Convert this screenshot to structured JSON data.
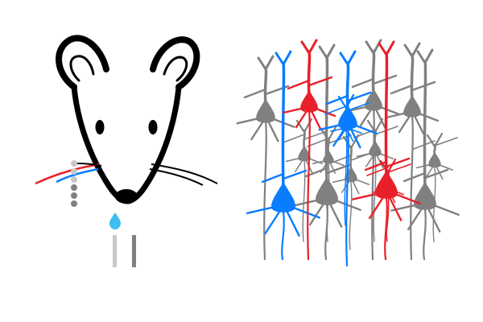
{
  "colors": {
    "background": "#ffffff",
    "outline": "#000000",
    "neuron_gray": "#808080",
    "neuron_blue": "#0a7cff",
    "neuron_red": "#e8202a",
    "drop_blue": "#3dbdf0",
    "dot_light": "#c8c8c8",
    "dot_dark": "#808080",
    "probe_light": "#c8c8c8",
    "probe_dark": "#808080"
  },
  "mouse": {
    "icon": "mouse-head-icon"
  },
  "electrode": {
    "icon": "electrode-array-icon",
    "contact_count": 6
  },
  "network": {
    "icon": "pyramidal-neuron-network-icon",
    "neurons": [
      {
        "color": "gray"
      },
      {
        "color": "blue"
      },
      {
        "color": "red"
      },
      {
        "color": "gray"
      },
      {
        "color": "blue"
      },
      {
        "color": "gray"
      },
      {
        "color": "red"
      },
      {
        "color": "gray"
      },
      {
        "color": "gray"
      },
      {
        "color": "gray"
      },
      {
        "color": "gray"
      },
      {
        "color": "blue"
      },
      {
        "color": "gray"
      },
      {
        "color": "gray"
      },
      {
        "color": "red"
      },
      {
        "color": "gray"
      }
    ]
  }
}
